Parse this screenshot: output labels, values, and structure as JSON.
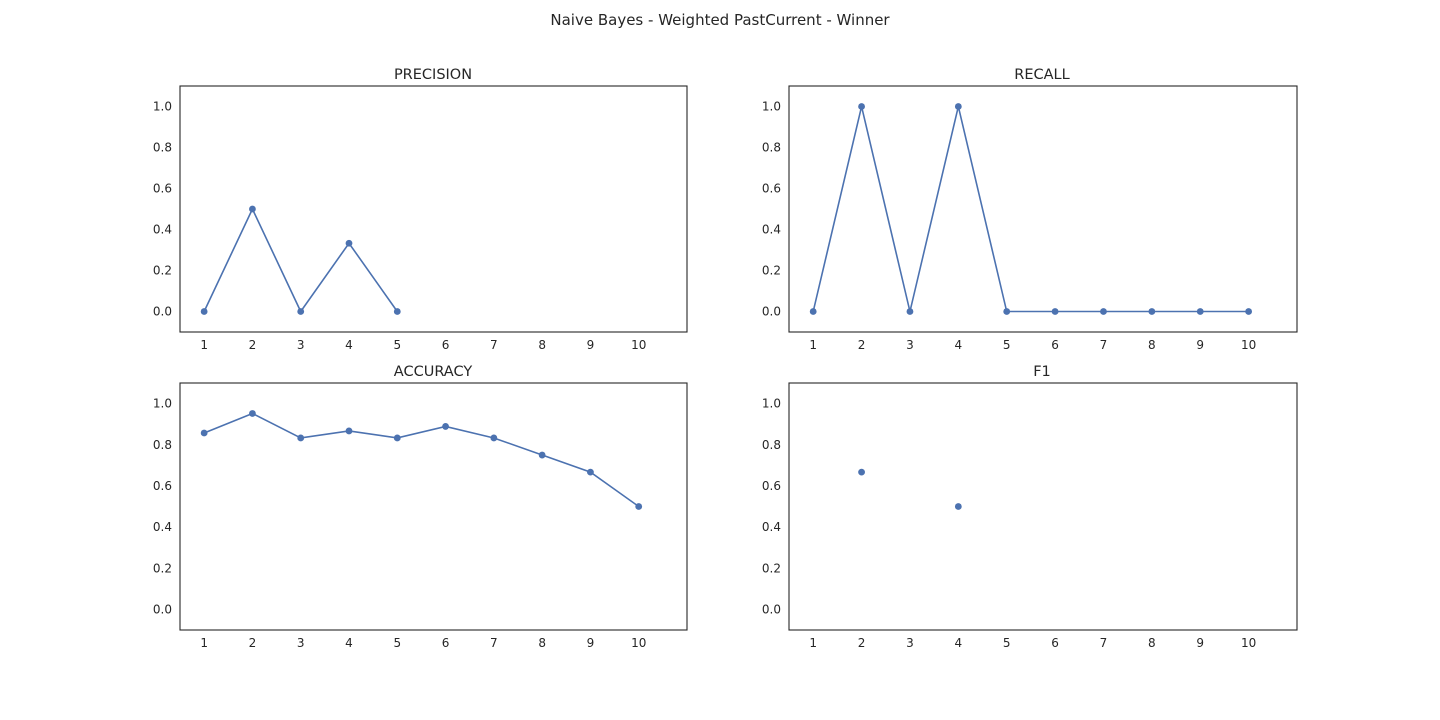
{
  "figure": {
    "title": "Naive Bayes - Weighted PastCurrent - Winner"
  },
  "style": {
    "line_color": "#4c72b0",
    "axes_color": "#262626",
    "background": "#ffffff"
  },
  "chart_data": [
    {
      "type": "line",
      "title": "PRECISION",
      "grid": false,
      "x": [
        1,
        2,
        3,
        4,
        5,
        6,
        7,
        8,
        9,
        10
      ],
      "xlim": [
        0.5,
        11
      ],
      "ylim": [
        -0.1,
        1.1
      ],
      "xticks": [
        "1",
        "2",
        "3",
        "4",
        "5",
        "6",
        "7",
        "8",
        "9",
        "10"
      ],
      "yticks": [
        "0.0",
        "0.2",
        "0.4",
        "0.6",
        "0.8",
        "1.0"
      ],
      "ytick_values": [
        0,
        0.2,
        0.4,
        0.6,
        0.8,
        1.0
      ],
      "series": [
        {
          "values": [
            0.0,
            0.5,
            0.0,
            0.333,
            0.0,
            null,
            null,
            null,
            null,
            null
          ]
        }
      ]
    },
    {
      "type": "line",
      "title": "RECALL",
      "grid": false,
      "x": [
        1,
        2,
        3,
        4,
        5,
        6,
        7,
        8,
        9,
        10
      ],
      "xlim": [
        0.5,
        11
      ],
      "ylim": [
        -0.1,
        1.1
      ],
      "xticks": [
        "1",
        "2",
        "3",
        "4",
        "5",
        "6",
        "7",
        "8",
        "9",
        "10"
      ],
      "yticks": [
        "0.0",
        "0.2",
        "0.4",
        "0.6",
        "0.8",
        "1.0"
      ],
      "ytick_values": [
        0,
        0.2,
        0.4,
        0.6,
        0.8,
        1.0
      ],
      "series": [
        {
          "values": [
            0.0,
            1.0,
            0.0,
            1.0,
            0.0,
            0.0,
            0.0,
            0.0,
            0.0,
            0.0
          ]
        }
      ]
    },
    {
      "type": "line",
      "title": "ACCURACY",
      "grid": false,
      "x": [
        1,
        2,
        3,
        4,
        5,
        6,
        7,
        8,
        9,
        10
      ],
      "xlim": [
        0.5,
        11
      ],
      "ylim": [
        -0.1,
        1.1
      ],
      "xticks": [
        "1",
        "2",
        "3",
        "4",
        "5",
        "6",
        "7",
        "8",
        "9",
        "10"
      ],
      "yticks": [
        "0.0",
        "0.2",
        "0.4",
        "0.6",
        "0.8",
        "1.0"
      ],
      "ytick_values": [
        0,
        0.2,
        0.4,
        0.6,
        0.8,
        1.0
      ],
      "series": [
        {
          "values": [
            0.857,
            0.952,
            0.833,
            0.867,
            0.833,
            0.889,
            0.833,
            0.75,
            0.667,
            0.5
          ]
        }
      ]
    },
    {
      "type": "line",
      "title": "F1",
      "grid": false,
      "x": [
        1,
        2,
        3,
        4,
        5,
        6,
        7,
        8,
        9,
        10
      ],
      "xlim": [
        0.5,
        11
      ],
      "ylim": [
        -0.1,
        1.1
      ],
      "xticks": [
        "1",
        "2",
        "3",
        "4",
        "5",
        "6",
        "7",
        "8",
        "9",
        "10"
      ],
      "yticks": [
        "0.0",
        "0.2",
        "0.4",
        "0.6",
        "0.8",
        "1.0"
      ],
      "ytick_values": [
        0,
        0.2,
        0.4,
        0.6,
        0.8,
        1.0
      ],
      "series": [
        {
          "values": [
            null,
            0.667,
            null,
            0.5,
            null,
            null,
            null,
            null,
            null,
            null
          ]
        }
      ]
    }
  ]
}
